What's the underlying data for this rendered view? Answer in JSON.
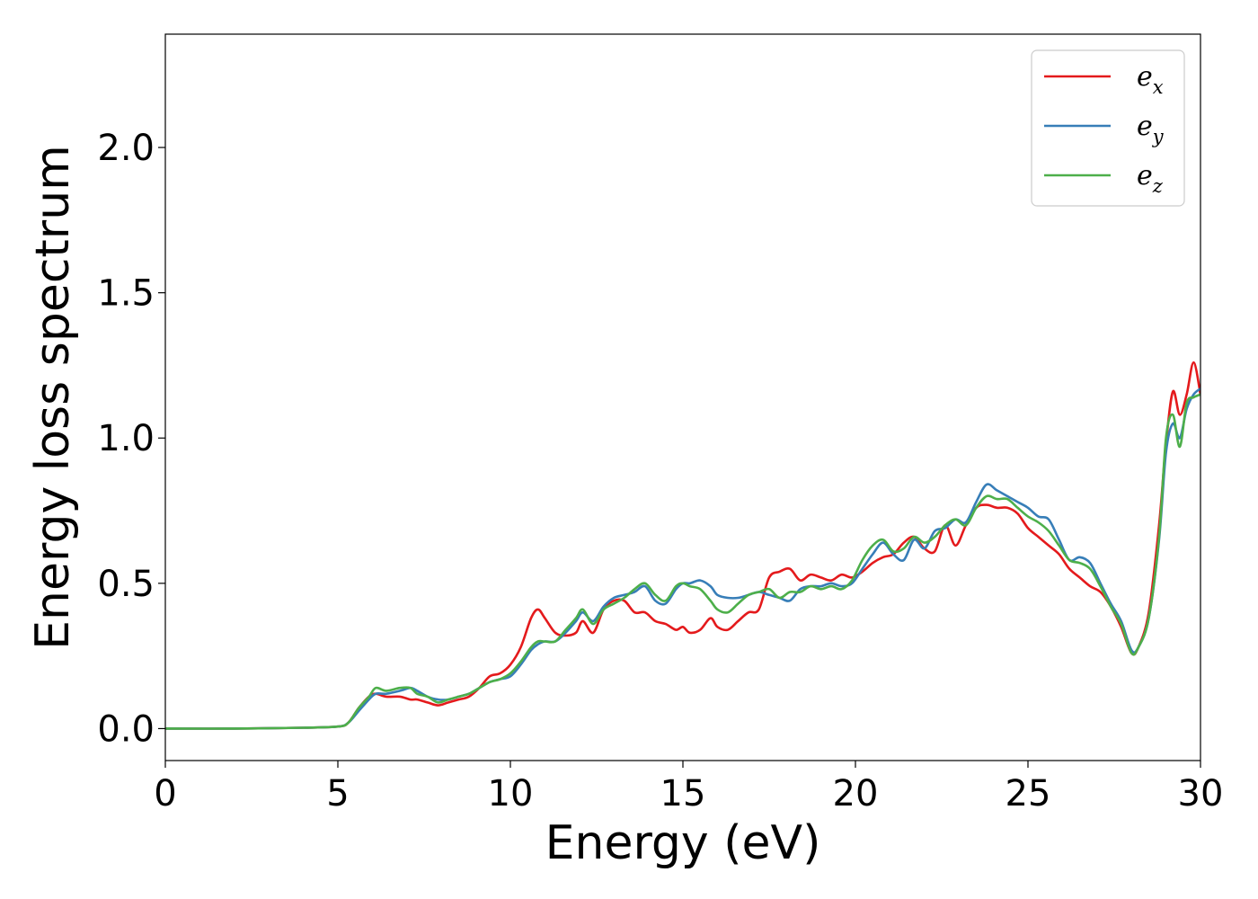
{
  "chart_data": {
    "type": "line",
    "title": "",
    "xlabel": "Energy (eV)",
    "ylabel": "Energy loss spectrum",
    "xlim": [
      0,
      30
    ],
    "ylim": [
      -0.11,
      2.39
    ],
    "x_ticks": [
      0,
      5,
      10,
      15,
      20,
      25,
      30
    ],
    "x_tick_labels": [
      "0",
      "5",
      "10",
      "15",
      "20",
      "25",
      "30"
    ],
    "y_ticks": [
      0.0,
      0.5,
      1.0,
      1.5,
      2.0
    ],
    "y_tick_labels": [
      "0.0",
      "0.5",
      "1.0",
      "1.5",
      "2.0"
    ],
    "grid": false,
    "legend_position": "top-right",
    "series": [
      {
        "name": "e",
        "subscript": "x",
        "color": "#e41a1c",
        "x": [
          0,
          2,
          4,
          5,
          5.3,
          5.6,
          5.9,
          6.1,
          6.4,
          6.8,
          7.1,
          7.3,
          7.6,
          7.9,
          8.2,
          8.5,
          8.8,
          9.1,
          9.4,
          9.7,
          10.0,
          10.3,
          10.6,
          10.8,
          11.0,
          11.3,
          11.6,
          11.9,
          12.1,
          12.4,
          12.7,
          13.0,
          13.3,
          13.6,
          13.9,
          14.2,
          14.5,
          14.8,
          15.0,
          15.2,
          15.5,
          15.8,
          16.0,
          16.3,
          16.6,
          16.9,
          17.2,
          17.5,
          17.8,
          18.1,
          18.4,
          18.7,
          19.0,
          19.3,
          19.6,
          19.9,
          20.2,
          20.5,
          20.8,
          21.1,
          21.4,
          21.7,
          22.0,
          22.3,
          22.6,
          22.9,
          23.2,
          23.5,
          23.8,
          24.1,
          24.4,
          24.7,
          25.0,
          25.3,
          25.6,
          25.9,
          26.2,
          26.5,
          26.8,
          27.1,
          27.4,
          27.7,
          28.0,
          28.2,
          28.5,
          28.8,
          29.0,
          29.2,
          29.4,
          29.6,
          29.8,
          30.0
        ],
        "y": [
          0.0,
          0.0,
          0.003,
          0.007,
          0.02,
          0.07,
          0.11,
          0.12,
          0.11,
          0.11,
          0.1,
          0.1,
          0.09,
          0.08,
          0.09,
          0.1,
          0.11,
          0.14,
          0.18,
          0.19,
          0.22,
          0.28,
          0.38,
          0.41,
          0.38,
          0.33,
          0.32,
          0.33,
          0.37,
          0.33,
          0.41,
          0.44,
          0.44,
          0.4,
          0.4,
          0.37,
          0.36,
          0.34,
          0.35,
          0.33,
          0.34,
          0.38,
          0.35,
          0.34,
          0.37,
          0.4,
          0.41,
          0.52,
          0.54,
          0.55,
          0.51,
          0.53,
          0.52,
          0.51,
          0.53,
          0.52,
          0.54,
          0.57,
          0.59,
          0.6,
          0.64,
          0.66,
          0.62,
          0.61,
          0.7,
          0.63,
          0.7,
          0.76,
          0.77,
          0.76,
          0.76,
          0.74,
          0.69,
          0.66,
          0.63,
          0.6,
          0.55,
          0.52,
          0.49,
          0.47,
          0.42,
          0.35,
          0.26,
          0.28,
          0.4,
          0.7,
          0.98,
          1.16,
          1.08,
          1.15,
          1.26,
          1.15
        ]
      },
      {
        "name": "e",
        "subscript": "y",
        "color": "#377eb8",
        "x": [
          0,
          2,
          4,
          5,
          5.3,
          5.6,
          5.9,
          6.1,
          6.4,
          6.8,
          7.1,
          7.3,
          7.6,
          7.9,
          8.2,
          8.5,
          8.8,
          9.1,
          9.4,
          9.7,
          10.0,
          10.3,
          10.6,
          10.8,
          11.0,
          11.3,
          11.6,
          11.9,
          12.1,
          12.4,
          12.7,
          13.0,
          13.3,
          13.6,
          13.9,
          14.2,
          14.5,
          14.8,
          15.0,
          15.2,
          15.5,
          15.8,
          16.0,
          16.3,
          16.6,
          16.9,
          17.2,
          17.5,
          17.8,
          18.1,
          18.4,
          18.7,
          19.0,
          19.3,
          19.6,
          19.9,
          20.2,
          20.5,
          20.8,
          21.1,
          21.4,
          21.7,
          22.0,
          22.3,
          22.6,
          22.9,
          23.2,
          23.5,
          23.8,
          24.1,
          24.4,
          24.7,
          25.0,
          25.3,
          25.6,
          25.9,
          26.2,
          26.5,
          26.8,
          27.1,
          27.4,
          27.7,
          28.0,
          28.2,
          28.5,
          28.8,
          29.0,
          29.2,
          29.4,
          29.6,
          29.8,
          30.0
        ],
        "y": [
          0.0,
          0.0,
          0.003,
          0.007,
          0.02,
          0.06,
          0.1,
          0.12,
          0.12,
          0.13,
          0.14,
          0.13,
          0.11,
          0.1,
          0.1,
          0.11,
          0.12,
          0.14,
          0.16,
          0.17,
          0.18,
          0.22,
          0.27,
          0.29,
          0.3,
          0.3,
          0.33,
          0.37,
          0.4,
          0.37,
          0.42,
          0.45,
          0.46,
          0.47,
          0.49,
          0.44,
          0.43,
          0.48,
          0.5,
          0.5,
          0.51,
          0.49,
          0.46,
          0.45,
          0.45,
          0.46,
          0.47,
          0.46,
          0.45,
          0.44,
          0.48,
          0.49,
          0.49,
          0.5,
          0.49,
          0.5,
          0.55,
          0.6,
          0.64,
          0.6,
          0.58,
          0.65,
          0.62,
          0.68,
          0.69,
          0.72,
          0.71,
          0.78,
          0.84,
          0.82,
          0.8,
          0.78,
          0.76,
          0.73,
          0.72,
          0.65,
          0.58,
          0.59,
          0.57,
          0.5,
          0.43,
          0.37,
          0.27,
          0.28,
          0.38,
          0.65,
          0.95,
          1.05,
          1.0,
          1.1,
          1.15,
          1.17
        ]
      },
      {
        "name": "e",
        "subscript": "z",
        "color": "#4daf4a",
        "x": [
          0,
          2,
          4,
          5,
          5.3,
          5.6,
          5.9,
          6.1,
          6.4,
          6.8,
          7.1,
          7.3,
          7.6,
          7.9,
          8.2,
          8.5,
          8.8,
          9.1,
          9.4,
          9.7,
          10.0,
          10.3,
          10.6,
          10.8,
          11.0,
          11.3,
          11.6,
          11.9,
          12.1,
          12.4,
          12.7,
          13.0,
          13.3,
          13.6,
          13.9,
          14.2,
          14.5,
          14.8,
          15.0,
          15.2,
          15.5,
          15.8,
          16.0,
          16.3,
          16.6,
          16.9,
          17.2,
          17.5,
          17.8,
          18.1,
          18.4,
          18.7,
          19.0,
          19.3,
          19.6,
          19.9,
          20.2,
          20.5,
          20.8,
          21.1,
          21.4,
          21.7,
          22.0,
          22.3,
          22.6,
          22.9,
          23.2,
          23.5,
          23.8,
          24.1,
          24.4,
          24.7,
          25.0,
          25.3,
          25.6,
          25.9,
          26.2,
          26.5,
          26.8,
          27.1,
          27.4,
          27.7,
          28.0,
          28.2,
          28.5,
          28.8,
          29.0,
          29.2,
          29.4,
          29.6,
          29.8,
          30.0
        ],
        "y": [
          0.0,
          0.0,
          0.003,
          0.007,
          0.02,
          0.07,
          0.11,
          0.14,
          0.13,
          0.14,
          0.14,
          0.12,
          0.11,
          0.09,
          0.1,
          0.11,
          0.12,
          0.14,
          0.16,
          0.17,
          0.19,
          0.23,
          0.28,
          0.3,
          0.3,
          0.3,
          0.34,
          0.38,
          0.41,
          0.36,
          0.41,
          0.43,
          0.45,
          0.48,
          0.5,
          0.46,
          0.44,
          0.49,
          0.5,
          0.49,
          0.48,
          0.44,
          0.41,
          0.4,
          0.43,
          0.46,
          0.47,
          0.48,
          0.45,
          0.47,
          0.47,
          0.49,
          0.48,
          0.49,
          0.48,
          0.51,
          0.58,
          0.63,
          0.65,
          0.61,
          0.62,
          0.66,
          0.64,
          0.66,
          0.7,
          0.72,
          0.7,
          0.76,
          0.8,
          0.79,
          0.79,
          0.76,
          0.73,
          0.71,
          0.68,
          0.63,
          0.58,
          0.57,
          0.55,
          0.49,
          0.42,
          0.36,
          0.26,
          0.28,
          0.38,
          0.66,
          1.0,
          1.08,
          0.97,
          1.12,
          1.14,
          1.15
        ]
      }
    ]
  }
}
